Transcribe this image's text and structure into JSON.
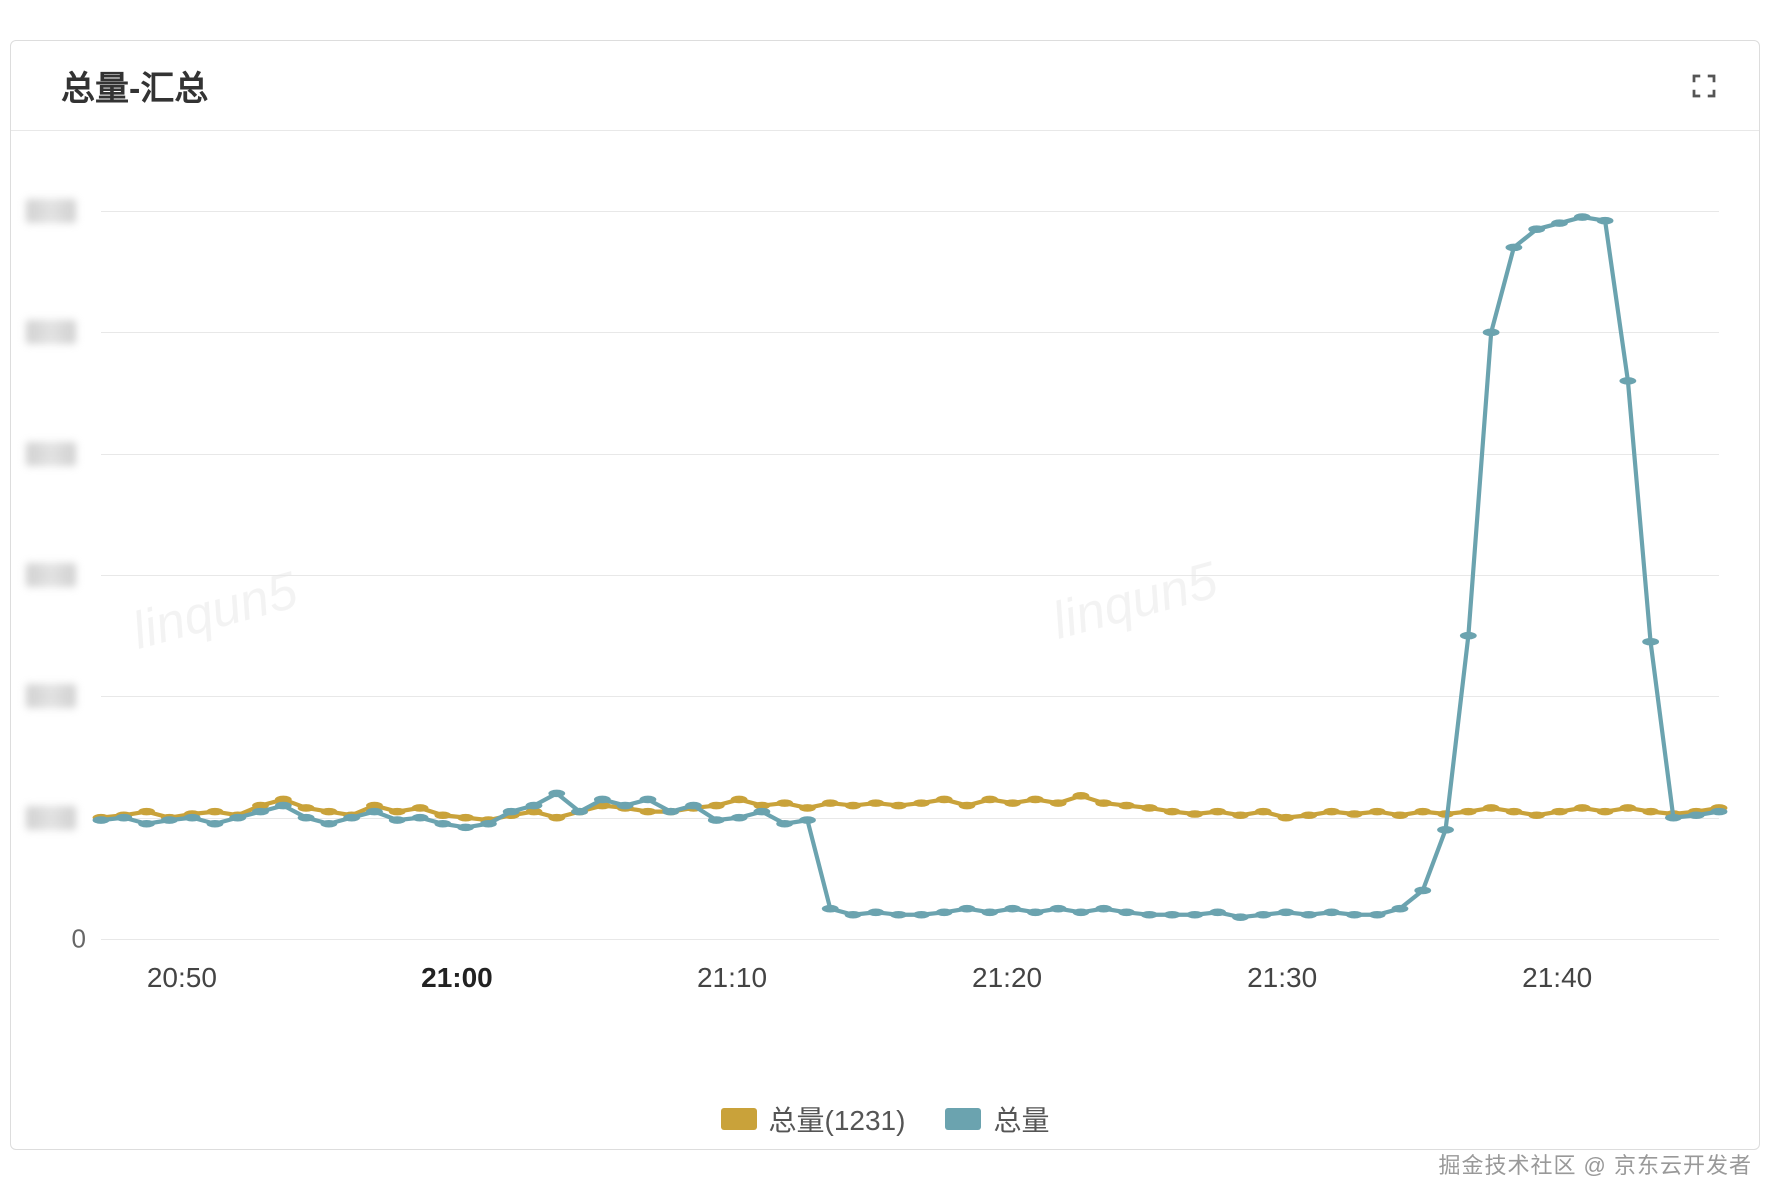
{
  "panel": {
    "title": "总量-汇总",
    "expand_tooltip": "expand"
  },
  "chart": {
    "type": "line",
    "background_color": "#ffffff",
    "grid_color": "#e8e8e8",
    "axis_label_color": "#555555",
    "title_fontsize": 34,
    "label_fontsize": 28,
    "line_width": 3,
    "marker_radius": 4,
    "x": {
      "ticks": [
        "20:50",
        "21:00",
        "21:10",
        "21:20",
        "21:30",
        "21:40"
      ],
      "tick_positions_pct": [
        5,
        22,
        39,
        56,
        73,
        90
      ],
      "bold_ticks": [
        "21:00"
      ],
      "min": "20:46",
      "max": "21:46"
    },
    "y": {
      "min": 0,
      "max": 6,
      "tick_step": 1,
      "labels_blurred": true,
      "visible_labels": {
        "0": "0"
      }
    },
    "series": [
      {
        "name": "总量(1231)",
        "color": "#c9a23a",
        "values": [
          1.0,
          1.02,
          1.05,
          1.0,
          1.03,
          1.05,
          1.02,
          1.1,
          1.15,
          1.08,
          1.05,
          1.02,
          1.1,
          1.05,
          1.08,
          1.02,
          1.0,
          0.98,
          1.02,
          1.05,
          1.0,
          1.05,
          1.1,
          1.08,
          1.05,
          1.05,
          1.08,
          1.1,
          1.15,
          1.1,
          1.12,
          1.08,
          1.12,
          1.1,
          1.12,
          1.1,
          1.12,
          1.15,
          1.1,
          1.15,
          1.12,
          1.15,
          1.12,
          1.18,
          1.12,
          1.1,
          1.08,
          1.05,
          1.03,
          1.05,
          1.02,
          1.05,
          1.0,
          1.02,
          1.05,
          1.03,
          1.05,
          1.02,
          1.05,
          1.03,
          1.05,
          1.08,
          1.05,
          1.02,
          1.05,
          1.08,
          1.05,
          1.08,
          1.05,
          1.03,
          1.05,
          1.08
        ]
      },
      {
        "name": "总量",
        "color": "#6ba3af",
        "values": [
          0.98,
          1.0,
          0.95,
          0.98,
          1.0,
          0.95,
          1.0,
          1.05,
          1.1,
          1.0,
          0.95,
          1.0,
          1.05,
          0.98,
          1.0,
          0.95,
          0.92,
          0.95,
          1.05,
          1.1,
          1.2,
          1.05,
          1.15,
          1.1,
          1.15,
          1.05,
          1.1,
          0.98,
          1.0,
          1.05,
          0.95,
          0.98,
          0.25,
          0.2,
          0.22,
          0.2,
          0.2,
          0.22,
          0.25,
          0.22,
          0.25,
          0.22,
          0.25,
          0.22,
          0.25,
          0.22,
          0.2,
          0.2,
          0.2,
          0.22,
          0.18,
          0.2,
          0.22,
          0.2,
          0.22,
          0.2,
          0.2,
          0.25,
          0.4,
          0.9,
          2.5,
          5.0,
          5.7,
          5.85,
          5.9,
          5.95,
          5.92,
          4.6,
          2.45,
          1.0,
          1.02,
          1.05
        ]
      }
    ]
  },
  "legend": {
    "items": [
      {
        "label": "总量(1231)",
        "color": "#c9a23a"
      },
      {
        "label": "总量",
        "color": "#6ba3af"
      }
    ]
  },
  "watermarks": {
    "footer": "掘金技术社区 @ 京东云开发者",
    "faint": "linqun5"
  }
}
